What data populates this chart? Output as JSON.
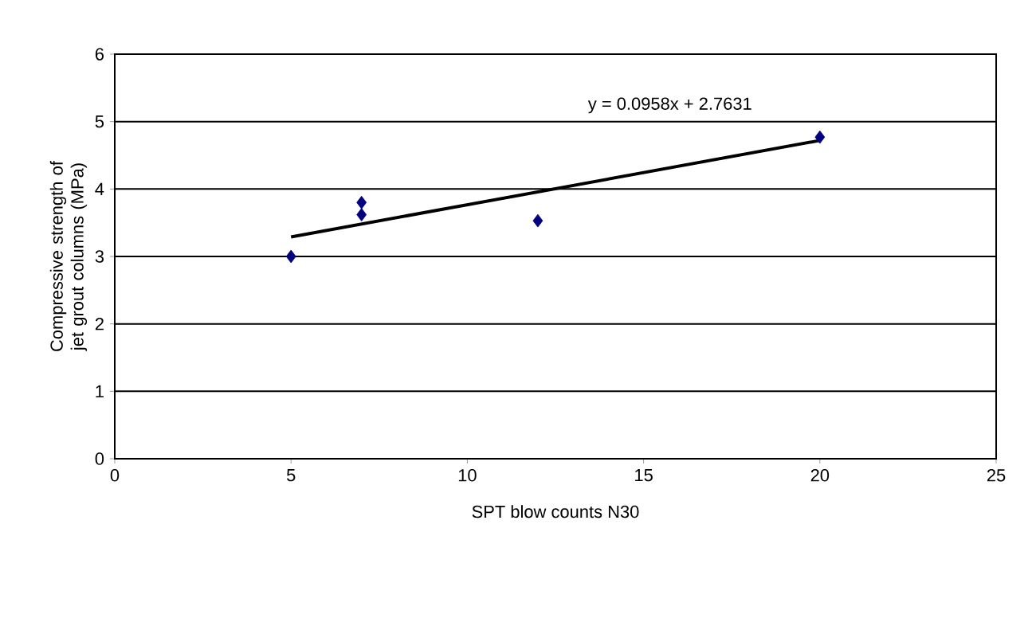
{
  "chart_data": {
    "type": "scatter",
    "xlabel": "SPT blow counts N30",
    "ylabel": "Compressive strength of jet grout columns (MPa)",
    "xlim": [
      0,
      25
    ],
    "xticks": [
      0,
      5,
      10,
      15,
      20,
      25
    ],
    "ylim": [
      0,
      6
    ],
    "yticks": [
      0,
      1,
      2,
      3,
      4,
      5,
      6
    ],
    "grid": "y",
    "series": [
      {
        "color": "#000080",
        "marker": "diamond",
        "x": [
          5,
          7,
          7,
          12,
          20
        ],
        "values": [
          3.0,
          3.8,
          3.62,
          3.53,
          4.77
        ]
      },
      {
        "type": "line",
        "color": "#000000",
        "marker": "none",
        "line_style": "solid",
        "x": [
          5,
          20
        ],
        "values": [
          3.29,
          4.72
        ]
      }
    ],
    "annotations": [
      "y = 0.0958x + 2.7631"
    ]
  }
}
